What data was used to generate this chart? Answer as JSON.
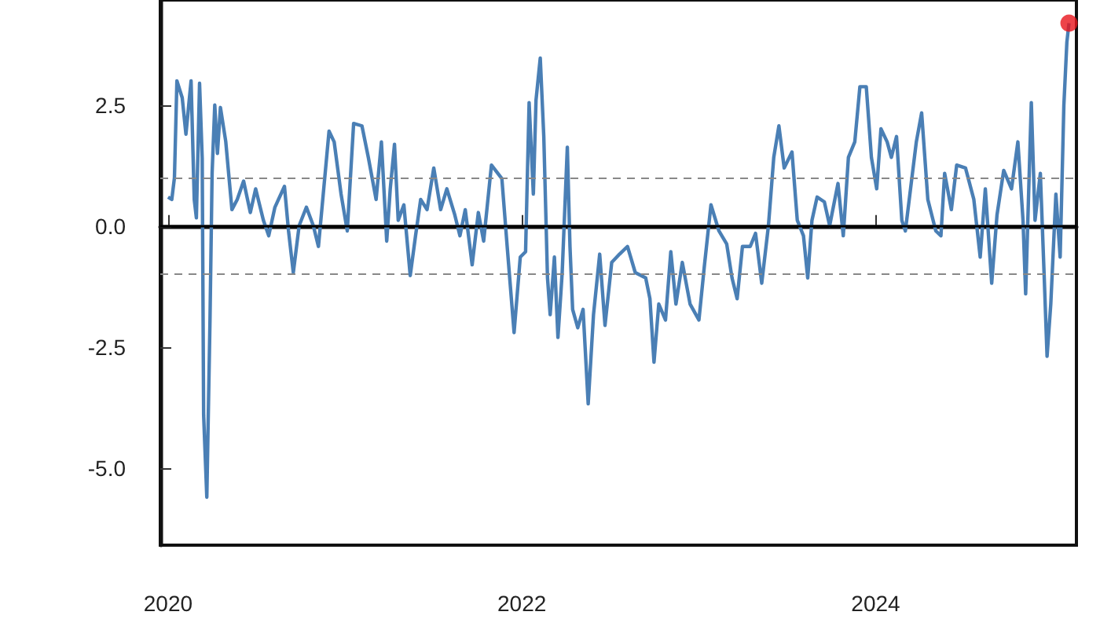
{
  "chart_data": {
    "type": "line",
    "xlim": [
      2019.956,
      2025.135
    ],
    "xticks": [
      2020,
      2022,
      2024
    ],
    "ylim": [
      -6.59,
      4.67
    ],
    "yticks": [
      {
        "value": -5,
        "label": "-5.0"
      },
      {
        "value": -2.5,
        "label": "-2.5"
      },
      {
        "value": 0,
        "label": "0.0"
      },
      {
        "value": 2.5,
        "label": "2.5"
      }
    ],
    "grid": false,
    "ref_lines": [
      {
        "axis": "y",
        "value": 0,
        "color": "#000000",
        "line_style": "solid"
      },
      {
        "axis": "y",
        "value": 1,
        "color": "#888888",
        "line_style": "dashed"
      },
      {
        "axis": "y",
        "value": -1,
        "color": "#888888",
        "line_style": "dashed"
      }
    ],
    "series": [
      {
        "marker": "none",
        "color": "#4a7fb5",
        "x": [
          2020.0,
          2020.021,
          2020.036,
          2020.05,
          2020.08,
          2020.101,
          2020.13,
          2020.148,
          2020.16,
          2020.178,
          2020.193,
          2020.201,
          2020.219,
          2020.237,
          2020.249,
          2020.264,
          2020.279,
          2020.296,
          2020.326,
          2020.361,
          2020.391,
          2020.427,
          2020.465,
          2020.495,
          2020.539,
          2020.569,
          2020.604,
          2020.658,
          2020.681,
          2020.708,
          2020.741,
          2020.782,
          2020.821,
          2020.85,
          2020.88,
          2020.91,
          2020.939,
          2020.978,
          2021.013,
          2021.049,
          2021.096,
          2021.132,
          2021.176,
          2021.206,
          2021.236,
          2021.256,
          2021.28,
          2021.301,
          2021.333,
          2021.369,
          2021.399,
          2021.428,
          2021.464,
          2021.502,
          2021.541,
          2021.576,
          2021.621,
          2021.65,
          2021.68,
          2021.719,
          2021.754,
          2021.784,
          2021.828,
          2021.887,
          2021.917,
          2021.956,
          2021.991,
          2022.021,
          2022.041,
          2022.065,
          2022.08,
          2022.104,
          2022.124,
          2022.145,
          2022.16,
          2022.184,
          2022.204,
          2022.228,
          2022.257,
          2022.272,
          2022.287,
          2022.316,
          2022.346,
          2022.375,
          2022.405,
          2022.44,
          2022.47,
          2022.508,
          2022.552,
          2022.597,
          2022.641,
          2022.7,
          2022.724,
          2022.747,
          2022.774,
          2022.812,
          2022.842,
          2022.871,
          2022.907,
          2022.951,
          2023.001,
          2023.031,
          2023.069,
          2023.114,
          2023.158,
          2023.188,
          2023.217,
          2023.247,
          2023.291,
          2023.321,
          2023.356,
          2023.394,
          2023.424,
          2023.453,
          2023.483,
          2023.527,
          2023.557,
          2023.592,
          2023.616,
          2023.64,
          2023.669,
          2023.71,
          2023.74,
          2023.787,
          2023.817,
          2023.846,
          2023.882,
          2023.911,
          2023.947,
          2023.976,
          2024.006,
          2024.03,
          2024.065,
          2024.089,
          2024.118,
          2024.148,
          2024.168,
          2024.201,
          2024.23,
          2024.26,
          2024.295,
          2024.34,
          2024.369,
          2024.39,
          2024.428,
          2024.458,
          2024.508,
          2024.555,
          2024.591,
          2024.62,
          2024.656,
          2024.686,
          2024.724,
          2024.768,
          2024.804,
          2024.833,
          2024.848,
          2024.88,
          2024.901,
          2024.931,
          2024.952,
          2024.969,
          2024.99,
          2025.019,
          2025.043,
          2025.064,
          2025.081,
          2025.093
        ],
        "values": [
          0.6,
          0.55,
          1.0,
          3.0,
          2.65,
          1.9,
          3.0,
          0.55,
          0.17,
          2.95,
          1.4,
          -3.9,
          -5.6,
          -1.95,
          1.1,
          2.5,
          1.5,
          2.45,
          1.75,
          0.34,
          0.55,
          0.93,
          0.28,
          0.77,
          0.12,
          -0.2,
          0.39,
          0.82,
          -0.1,
          -0.96,
          0.01,
          0.39,
          0.01,
          -0.42,
          0.77,
          1.96,
          1.74,
          0.66,
          -0.1,
          2.12,
          2.07,
          1.42,
          0.55,
          1.74,
          -0.31,
          0.77,
          1.69,
          0.12,
          0.44,
          -1.02,
          -0.2,
          0.55,
          0.34,
          1.2,
          0.34,
          0.77,
          0.23,
          -0.2,
          0.34,
          -0.8,
          0.28,
          -0.31,
          1.26,
          0.98,
          -0.42,
          -2.2,
          -0.64,
          -0.53,
          2.55,
          0.66,
          2.6,
          3.47,
          1.85,
          -1.07,
          -1.83,
          -0.64,
          -2.3,
          -0.96,
          1.63,
          -0.42,
          -1.72,
          -2.1,
          -1.72,
          -3.67,
          -1.83,
          -0.58,
          -2.05,
          -0.75,
          -0.58,
          -0.42,
          -0.96,
          -1.07,
          -1.5,
          -2.81,
          -1.61,
          -1.94,
          -0.53,
          -1.61,
          -0.75,
          -1.61,
          -1.94,
          -0.85,
          0.44,
          -0.1,
          -0.37,
          -1.07,
          -1.5,
          -0.42,
          -0.42,
          -0.15,
          -1.18,
          0.01,
          1.42,
          2.07,
          1.2,
          1.53,
          0.12,
          -0.2,
          -1.07,
          0.12,
          0.6,
          0.5,
          0.01,
          0.88,
          -0.2,
          1.42,
          1.74,
          2.88,
          2.88,
          1.42,
          0.77,
          2.01,
          1.74,
          1.42,
          1.85,
          0.12,
          -0.1,
          0.88,
          1.74,
          2.34,
          0.55,
          -0.1,
          -0.2,
          1.09,
          0.34,
          1.26,
          1.2,
          0.55,
          -0.64,
          0.77,
          -1.18,
          0.23,
          1.15,
          0.77,
          1.74,
          0.12,
          -1.4,
          2.55,
          0.12,
          1.09,
          -0.96,
          -2.69,
          -1.61,
          0.66,
          -0.64,
          2.5,
          3.8,
          4.19
        ]
      },
      {
        "type": "scatter",
        "marker": "circle",
        "color": "#e8141c",
        "x": [
          2025.093
        ],
        "values": [
          4.19
        ]
      }
    ]
  }
}
